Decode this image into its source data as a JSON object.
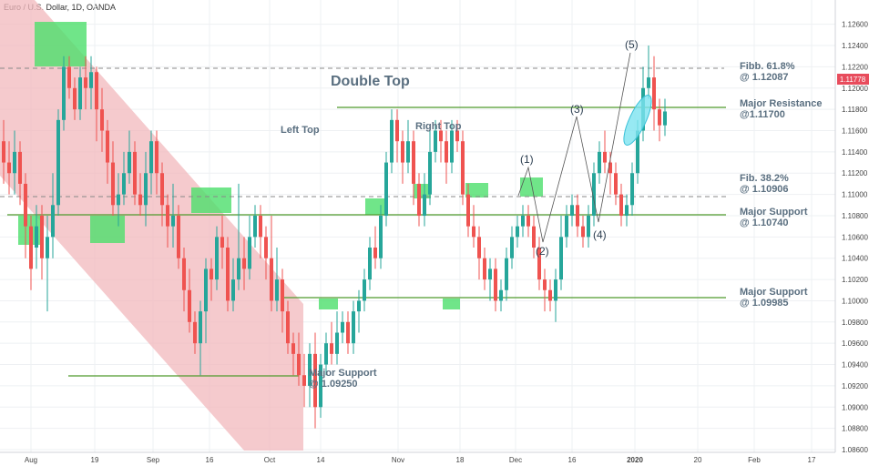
{
  "header": {
    "title": "Euro / U.S. Dollar, 1D, OANDA"
  },
  "price_label": {
    "value": "1.11778",
    "color": "#e84c5c"
  },
  "colors": {
    "up": "#26a69a",
    "down": "#ef5350",
    "channel": "#f2b8bc",
    "box": "#4cdf6c",
    "hline": "#4f9a2c",
    "dash": "#888888",
    "highlight": "#7de3f0"
  },
  "chart_data": {
    "type": "candlestick",
    "title": "Euro / U.S. Dollar, 1D, OANDA",
    "ylim": [
      1.086,
      1.127
    ],
    "y_ticks": [
      "1.12600",
      "1.12400",
      "1.12200",
      "1.12000",
      "1.11800",
      "1.11600",
      "1.11400",
      "1.11200",
      "1.11000",
      "1.10800",
      "1.10600",
      "1.10400",
      "1.10200",
      "1.10000",
      "1.09800",
      "1.09600",
      "1.09400",
      "1.09200",
      "1.09000",
      "1.08800",
      "1.08600"
    ],
    "x_ticks": [
      "Aug",
      "19",
      "Sep",
      "16",
      "Oct",
      "14",
      "Nov",
      "18",
      "Dec",
      "16",
      "2020",
      "20",
      "Feb",
      "17"
    ],
    "candles": [
      [
        1.115,
        1.113,
        1.117,
        1.111
      ],
      [
        1.113,
        1.112,
        1.115,
        1.11
      ],
      [
        1.112,
        1.114,
        1.116,
        1.11
      ],
      [
        1.114,
        1.111,
        1.115,
        1.109
      ],
      [
        1.111,
        1.107,
        1.112,
        1.104
      ],
      [
        1.107,
        1.103,
        1.108,
        1.101
      ],
      [
        1.105,
        1.107,
        1.109,
        1.103
      ],
      [
        1.108,
        1.104,
        1.109,
        1.102
      ],
      [
        1.104,
        1.106,
        1.108,
        1.099
      ],
      [
        1.106,
        1.109,
        1.112,
        1.104
      ],
      [
        1.109,
        1.117,
        1.118,
        1.108
      ],
      [
        1.117,
        1.122,
        1.123,
        1.116
      ],
      [
        1.122,
        1.12,
        1.123,
        1.119
      ],
      [
        1.12,
        1.118,
        1.121,
        1.117
      ],
      [
        1.118,
        1.121,
        1.122,
        1.117
      ],
      [
        1.121,
        1.12,
        1.123,
        1.118
      ],
      [
        1.12,
        1.1215,
        1.123,
        1.118
      ],
      [
        1.1215,
        1.118,
        1.122,
        1.115
      ],
      [
        1.118,
        1.116,
        1.12,
        1.114
      ],
      [
        1.116,
        1.113,
        1.117,
        1.111
      ],
      [
        1.113,
        1.109,
        1.115,
        1.108
      ],
      [
        1.109,
        1.11,
        1.112,
        1.107
      ],
      [
        1.11,
        1.112,
        1.114,
        1.109
      ],
      [
        1.112,
        1.114,
        1.116,
        1.111
      ],
      [
        1.114,
        1.11,
        1.115,
        1.109
      ],
      [
        1.11,
        1.109,
        1.112,
        1.108
      ],
      [
        1.109,
        1.112,
        1.114,
        1.107
      ],
      [
        1.112,
        1.115,
        1.116,
        1.11
      ],
      [
        1.115,
        1.112,
        1.116,
        1.11
      ],
      [
        1.112,
        1.109,
        1.113,
        1.107
      ],
      [
        1.109,
        1.107,
        1.11,
        1.105
      ],
      [
        1.107,
        1.108,
        1.111,
        1.105
      ],
      [
        1.108,
        1.104,
        1.109,
        1.103
      ],
      [
        1.104,
        1.101,
        1.105,
        1.099
      ],
      [
        1.101,
        1.098,
        1.103,
        1.097
      ],
      [
        1.098,
        1.096,
        1.099,
        1.095
      ],
      [
        1.096,
        1.099,
        1.1,
        1.093
      ],
      [
        1.099,
        1.103,
        1.104,
        1.096
      ],
      [
        1.103,
        1.102,
        1.104,
        1.1
      ],
      [
        1.102,
        1.106,
        1.107,
        1.101
      ],
      [
        1.106,
        1.105,
        1.108,
        1.103
      ],
      [
        1.105,
        1.1,
        1.106,
        1.099
      ],
      [
        1.1,
        1.102,
        1.104,
        1.099
      ],
      [
        1.102,
        1.104,
        1.111,
        1.101
      ],
      [
        1.104,
        1.103,
        1.106,
        1.101
      ],
      [
        1.103,
        1.106,
        1.108,
        1.102
      ],
      [
        1.106,
        1.108,
        1.109,
        1.105
      ],
      [
        1.108,
        1.106,
        1.109,
        1.104
      ],
      [
        1.106,
        1.104,
        1.107,
        1.102
      ],
      [
        1.104,
        1.1,
        1.108,
        1.099
      ],
      [
        1.1,
        1.102,
        1.105,
        1.099
      ],
      [
        1.102,
        1.099,
        1.103,
        1.097
      ],
      [
        1.099,
        1.096,
        1.1,
        1.095
      ],
      [
        1.096,
        1.095,
        1.097,
        1.093
      ],
      [
        1.095,
        1.093,
        1.097,
        1.092
      ],
      [
        1.093,
        1.092,
        1.095,
        1.09
      ],
      [
        1.092,
        1.095,
        1.096,
        1.09
      ],
      [
        1.095,
        1.09,
        1.097,
        1.088
      ],
      [
        1.09,
        1.094,
        1.095,
        1.089
      ],
      [
        1.094,
        1.096,
        1.097,
        1.093
      ],
      [
        1.096,
        1.095,
        1.098,
        1.094
      ],
      [
        1.095,
        1.097,
        1.099,
        1.094
      ],
      [
        1.097,
        1.098,
        1.099,
        1.096
      ],
      [
        1.098,
        1.096,
        1.099,
        1.095
      ],
      [
        1.096,
        1.099,
        1.1,
        1.095
      ],
      [
        1.099,
        1.1,
        1.101,
        1.097
      ],
      [
        1.1,
        1.102,
        1.103,
        1.099
      ],
      [
        1.102,
        1.105,
        1.106,
        1.101
      ],
      [
        1.105,
        1.104,
        1.107,
        1.103
      ],
      [
        1.104,
        1.108,
        1.109,
        1.103
      ],
      [
        1.108,
        1.113,
        1.114,
        1.107
      ],
      [
        1.113,
        1.117,
        1.118,
        1.112
      ],
      [
        1.117,
        1.115,
        1.118,
        1.113
      ],
      [
        1.115,
        1.113,
        1.116,
        1.111
      ],
      [
        1.113,
        1.115,
        1.117,
        1.112
      ],
      [
        1.115,
        1.111,
        1.116,
        1.109
      ],
      [
        1.111,
        1.108,
        1.112,
        1.107
      ],
      [
        1.108,
        1.11,
        1.112,
        1.107
      ],
      [
        1.11,
        1.114,
        1.116,
        1.109
      ],
      [
        1.114,
        1.116,
        1.117,
        1.113
      ],
      [
        1.116,
        1.115,
        1.117,
        1.113
      ],
      [
        1.115,
        1.113,
        1.116,
        1.111
      ],
      [
        1.113,
        1.116,
        1.117,
        1.112
      ],
      [
        1.116,
        1.115,
        1.117,
        1.114
      ],
      [
        1.115,
        1.11,
        1.116,
        1.109
      ],
      [
        1.11,
        1.107,
        1.111,
        1.106
      ],
      [
        1.107,
        1.106,
        1.109,
        1.105
      ],
      [
        1.106,
        1.104,
        1.107,
        1.102
      ],
      [
        1.104,
        1.102,
        1.105,
        1.101
      ],
      [
        1.102,
        1.103,
        1.104,
        1.1
      ],
      [
        1.103,
        1.1,
        1.104,
        1.099
      ],
      [
        1.1,
        1.101,
        1.102,
        1.099
      ],
      [
        1.101,
        1.104,
        1.105,
        1.1
      ],
      [
        1.104,
        1.106,
        1.107,
        1.103
      ],
      [
        1.106,
        1.107,
        1.108,
        1.105
      ],
      [
        1.107,
        1.108,
        1.109,
        1.106
      ],
      [
        1.108,
        1.107,
        1.109,
        1.106
      ],
      [
        1.107,
        1.105,
        1.108,
        1.104
      ],
      [
        1.105,
        1.102,
        1.106,
        1.101
      ],
      [
        1.102,
        1.101,
        1.103,
        1.099
      ],
      [
        1.101,
        1.1,
        1.102,
        1.099
      ],
      [
        1.1,
        1.102,
        1.103,
        1.098
      ],
      [
        1.102,
        1.106,
        1.108,
        1.101
      ],
      [
        1.106,
        1.108,
        1.109,
        1.105
      ],
      [
        1.108,
        1.109,
        1.11,
        1.107
      ],
      [
        1.109,
        1.107,
        1.11,
        1.106
      ],
      [
        1.107,
        1.106,
        1.108,
        1.105
      ],
      [
        1.106,
        1.108,
        1.109,
        1.105
      ],
      [
        1.108,
        1.112,
        1.113,
        1.107
      ],
      [
        1.112,
        1.114,
        1.115,
        1.111
      ],
      [
        1.114,
        1.113,
        1.116,
        1.112
      ],
      [
        1.113,
        1.112,
        1.114,
        1.11
      ],
      [
        1.112,
        1.11,
        1.113,
        1.109
      ],
      [
        1.11,
        1.108,
        1.111,
        1.107
      ],
      [
        1.108,
        1.109,
        1.11,
        1.107
      ],
      [
        1.109,
        1.112,
        1.113,
        1.108
      ],
      [
        1.112,
        1.116,
        1.117,
        1.111
      ],
      [
        1.116,
        1.12,
        1.122,
        1.115
      ],
      [
        1.12,
        1.121,
        1.124,
        1.119
      ],
      [
        1.121,
        1.118,
        1.123,
        1.116
      ],
      [
        1.118,
        1.1165,
        1.119,
        1.115
      ],
      [
        1.1165,
        1.1178,
        1.119,
        1.1155
      ]
    ],
    "horizontal_lines": [
      {
        "value": 1.117,
        "style": "solid"
      },
      {
        "value": 1.1074,
        "style": "solid"
      },
      {
        "value": 1.09985,
        "style": "solid"
      },
      {
        "value": 1.0925,
        "style": "solid"
      },
      {
        "value": 1.12087,
        "style": "dashed"
      },
      {
        "value": 1.10906,
        "style": "dashed"
      }
    ]
  },
  "annotations": {
    "double_top": "Double Top",
    "left_top": "Left Top",
    "right_top": "Right Top",
    "fibb_618": "Fibb. 61.8%",
    "fibb_618_val": "@ 1.12087",
    "major_res": "Major Resistance",
    "major_res_val": "@1.11700",
    "fib_382": "Fib. 38.2%",
    "fib_382_val": "@ 1.10906",
    "major_sup1": "Major Support",
    "major_sup1_val": "@ 1.10740",
    "major_sup2": "Major Support",
    "major_sup2_val": "@ 1.09985",
    "major_sup3": "Major Support",
    "major_sup3_val": "@ 1.09250",
    "wave1": "(1)",
    "wave2": "(2)",
    "wave3": "(3)",
    "wave4": "(4)",
    "wave5": "(5)"
  }
}
